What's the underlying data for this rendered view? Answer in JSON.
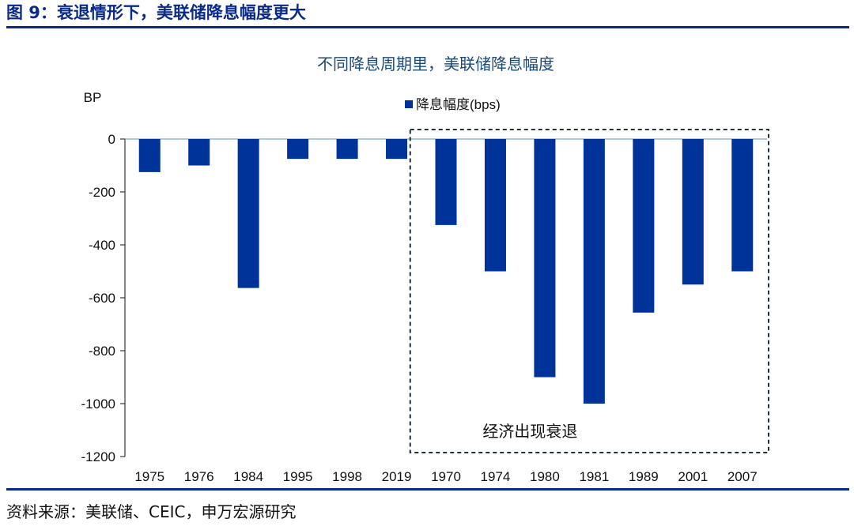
{
  "figure": {
    "title": "图 9：衰退情形下，美联储降息幅度更大",
    "source": "资料来源：美联储、CEIC，申万宏源研究"
  },
  "colors": {
    "bar": "#003399",
    "axis": "#111111",
    "zero_line": "#7aa7c7",
    "title_text": "#1a4a7a",
    "header": "#0a2a8a"
  },
  "chart_data": {
    "type": "bar",
    "title": "不同降息周期里，美联储降息幅度",
    "ylabel": "BP",
    "xlabel": "",
    "ylim": [
      -1200,
      0
    ],
    "yticks": [
      0,
      -200,
      -400,
      -600,
      -800,
      -1000,
      -1200
    ],
    "grid": false,
    "legend": {
      "position": "top-center",
      "entries": [
        "降息幅度(bps)"
      ]
    },
    "categories": [
      "1975",
      "1976",
      "1984",
      "1995",
      "1998",
      "2019",
      "1970",
      "1974",
      "1980",
      "1981",
      "1989",
      "2001",
      "2007"
    ],
    "series": [
      {
        "name": "降息幅度(bps)",
        "values": [
          -125,
          -100,
          -563,
          -75,
          -75,
          -75,
          -325,
          -500,
          -900,
          -1000,
          -656,
          -550,
          -500
        ]
      }
    ],
    "annotations": [
      {
        "text": "经济出现衰退",
        "category_range": [
          "1970",
          "2007"
        ]
      }
    ]
  }
}
